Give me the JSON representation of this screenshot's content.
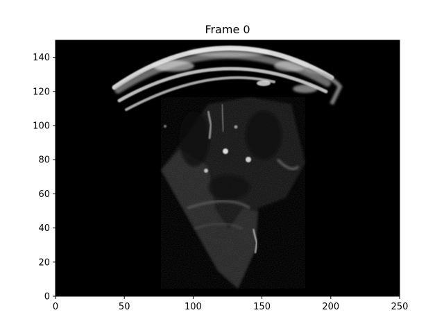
{
  "figure": {
    "title": "Frame 0"
  },
  "chart_data": {
    "type": "heatmap",
    "title": "Frame 0",
    "xlabel": "",
    "ylabel": "",
    "xlim": [
      0,
      250
    ],
    "ylim": [
      0,
      150
    ],
    "x_ticks": [
      0,
      50,
      100,
      150,
      200,
      250
    ],
    "y_ticks": [
      0,
      20,
      40,
      60,
      80,
      100,
      120,
      140
    ],
    "x_tick_labels": [
      "0",
      "50",
      "100",
      "150",
      "200",
      "250"
    ],
    "y_tick_labels": [
      "0",
      "20",
      "40",
      "60",
      "80",
      "100",
      "120",
      "140"
    ],
    "colormap": "gray",
    "grid": false,
    "background_color": "#000000",
    "content": "grayscale ultrasound fan-shaped scan image"
  }
}
